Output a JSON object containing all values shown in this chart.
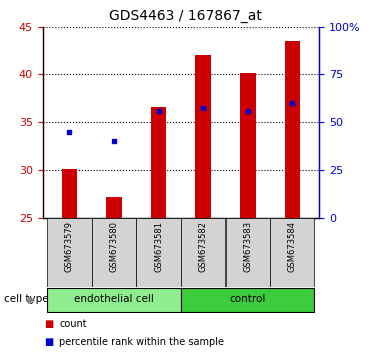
{
  "title": "GDS4463 / 167867_at",
  "samples": [
    "GSM673579",
    "GSM673580",
    "GSM673581",
    "GSM673582",
    "GSM673583",
    "GSM673584"
  ],
  "bar_values": [
    30.1,
    27.2,
    36.6,
    42.0,
    40.1,
    43.5
  ],
  "bar_bottom": 25,
  "blue_values": [
    34.0,
    33.0,
    36.2,
    36.5,
    36.2,
    37.0
  ],
  "bar_color": "#cc0000",
  "blue_color": "#0000cc",
  "ylim_left": [
    25,
    45
  ],
  "yticks_left": [
    25,
    30,
    35,
    40,
    45
  ],
  "ylim_right": [
    0,
    100
  ],
  "yticks_right": [
    0,
    25,
    50,
    75,
    100
  ],
  "ytick_labels_right": [
    "0",
    "25",
    "50",
    "75",
    "100%"
  ],
  "groups": [
    {
      "label": "endothelial cell",
      "indices": [
        0,
        1,
        2
      ],
      "color": "#90ee90"
    },
    {
      "label": "control",
      "indices": [
        3,
        4,
        5
      ],
      "color": "#3dcc3d"
    }
  ],
  "cell_type_label": "cell type",
  "legend_items": [
    {
      "label": "count",
      "color": "#cc0000"
    },
    {
      "label": "percentile rank within the sample",
      "color": "#0000cc"
    }
  ],
  "tick_color_left": "#cc0000",
  "tick_color_right": "#0000cc",
  "sample_bg": "#d3d3d3",
  "bar_width": 0.35
}
